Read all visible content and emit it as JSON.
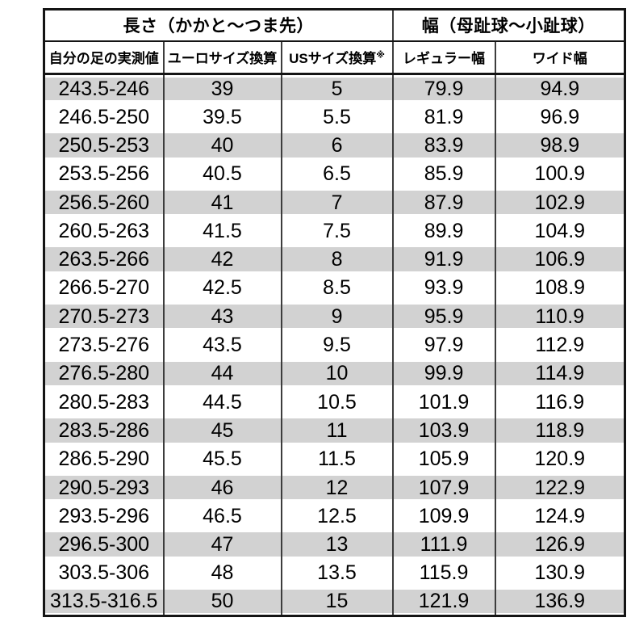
{
  "table": {
    "group_headers": [
      {
        "label": "長さ（かかと〜つま先）",
        "colspan": 3
      },
      {
        "label": "幅（母趾球〜小趾球）",
        "colspan": 2
      }
    ],
    "column_headers": [
      {
        "label": "自分の足の実測値"
      },
      {
        "label": "ユーロサイズ換算"
      },
      {
        "label": "USサイズ換算",
        "note_mark": "※"
      },
      {
        "label": "レギュラー幅"
      },
      {
        "label": "ワイド幅"
      }
    ],
    "rows": [
      [
        "243.5-246",
        "39",
        "5",
        "79.9",
        "94.9"
      ],
      [
        "246.5-250",
        "39.5",
        "5.5",
        "81.9",
        "96.9"
      ],
      [
        "250.5-253",
        "40",
        "6",
        "83.9",
        "98.9"
      ],
      [
        "253.5-256",
        "40.5",
        "6.5",
        "85.9",
        "100.9"
      ],
      [
        "256.5-260",
        "41",
        "7",
        "87.9",
        "102.9"
      ],
      [
        "260.5-263",
        "41.5",
        "7.5",
        "89.9",
        "104.9"
      ],
      [
        "263.5-266",
        "42",
        "8",
        "91.9",
        "106.9"
      ],
      [
        "266.5-270",
        "42.5",
        "8.5",
        "93.9",
        "108.9"
      ],
      [
        "270.5-273",
        "43",
        "9",
        "95.9",
        "110.9"
      ],
      [
        "273.5-276",
        "43.5",
        "9.5",
        "97.9",
        "112.9"
      ],
      [
        "276.5-280",
        "44",
        "10",
        "99.9",
        "114.9"
      ],
      [
        "280.5-283",
        "44.5",
        "10.5",
        "101.9",
        "116.9"
      ],
      [
        "283.5-286",
        "45",
        "11",
        "103.9",
        "118.9"
      ],
      [
        "286.5-290",
        "45.5",
        "11.5",
        "105.9",
        "120.9"
      ],
      [
        "290.5-293",
        "46",
        "12",
        "107.9",
        "122.9"
      ],
      [
        "293.5-296",
        "46.5",
        "12.5",
        "109.9",
        "124.9"
      ],
      [
        "296.5-300",
        "47",
        "13",
        "111.9",
        "126.9"
      ],
      [
        "303.5-306",
        "48",
        "13.5",
        "115.9",
        "130.9"
      ],
      [
        "313.5-316.5",
        "50",
        "15",
        "121.9",
        "136.9"
      ]
    ]
  },
  "colors": {
    "band_gray": "#d2d2d2",
    "outer_border": "#141414",
    "grid_line": "#3d3d3d",
    "text": "#000000"
  }
}
